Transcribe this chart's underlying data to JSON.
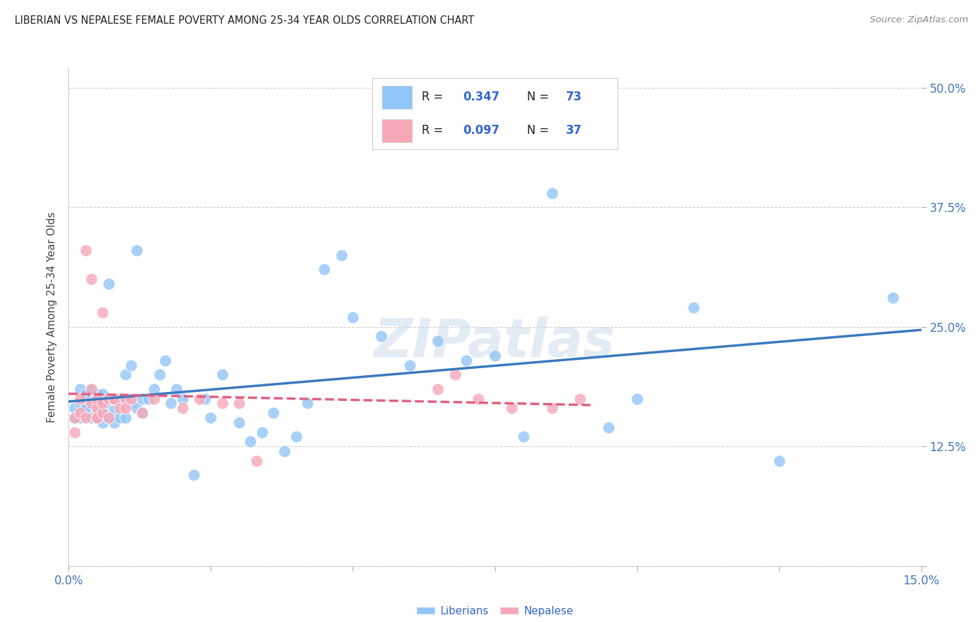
{
  "title": "LIBERIAN VS NEPALESE FEMALE POVERTY AMONG 25-34 YEAR OLDS CORRELATION CHART",
  "source": "Source: ZipAtlas.com",
  "ylabel": "Female Poverty Among 25-34 Year Olds",
  "xlim": [
    0.0,
    0.15
  ],
  "ylim": [
    0.0,
    0.52
  ],
  "xticks": [
    0.0,
    0.025,
    0.05,
    0.075,
    0.1,
    0.125,
    0.15
  ],
  "xtick_labels": [
    "0.0%",
    "",
    "",
    "",
    "",
    "",
    "15.0%"
  ],
  "yticks": [
    0.0,
    0.125,
    0.25,
    0.375,
    0.5
  ],
  "ytick_labels": [
    "",
    "12.5%",
    "25.0%",
    "37.5%",
    "50.0%"
  ],
  "liberian_color": "#92c5f7",
  "nepalese_color": "#f7a8b8",
  "liberian_line_color": "#3a7abf",
  "nepalese_line_color": "#e06080",
  "watermark": "ZIPatlas",
  "legend_R_liberian": "0.347",
  "legend_N_liberian": "73",
  "legend_R_nepalese": "0.097",
  "legend_N_nepalese": "37",
  "liberian_x": [
    0.001,
    0.001,
    0.002,
    0.002,
    0.002,
    0.003,
    0.003,
    0.003,
    0.003,
    0.004,
    0.004,
    0.004,
    0.004,
    0.005,
    0.005,
    0.005,
    0.005,
    0.005,
    0.006,
    0.006,
    0.006,
    0.006,
    0.006,
    0.007,
    0.007,
    0.007,
    0.008,
    0.008,
    0.008,
    0.009,
    0.009,
    0.01,
    0.01,
    0.01,
    0.011,
    0.011,
    0.012,
    0.012,
    0.013,
    0.013,
    0.014,
    0.015,
    0.016,
    0.017,
    0.018,
    0.019,
    0.02,
    0.022,
    0.024,
    0.025,
    0.027,
    0.03,
    0.032,
    0.034,
    0.036,
    0.038,
    0.04,
    0.042,
    0.045,
    0.048,
    0.05,
    0.055,
    0.06,
    0.065,
    0.07,
    0.075,
    0.08,
    0.085,
    0.095,
    0.1,
    0.11,
    0.125,
    0.145
  ],
  "liberian_y": [
    0.165,
    0.155,
    0.155,
    0.17,
    0.185,
    0.165,
    0.175,
    0.18,
    0.165,
    0.155,
    0.17,
    0.175,
    0.185,
    0.155,
    0.165,
    0.17,
    0.175,
    0.18,
    0.15,
    0.16,
    0.17,
    0.175,
    0.18,
    0.295,
    0.155,
    0.17,
    0.15,
    0.162,
    0.175,
    0.155,
    0.175,
    0.155,
    0.175,
    0.2,
    0.17,
    0.21,
    0.165,
    0.33,
    0.16,
    0.175,
    0.175,
    0.185,
    0.2,
    0.215,
    0.17,
    0.185,
    0.175,
    0.095,
    0.175,
    0.155,
    0.2,
    0.15,
    0.13,
    0.14,
    0.16,
    0.12,
    0.135,
    0.17,
    0.31,
    0.325,
    0.26,
    0.24,
    0.21,
    0.235,
    0.215,
    0.22,
    0.135,
    0.39,
    0.145,
    0.175,
    0.27,
    0.11,
    0.28
  ],
  "nepalese_x": [
    0.001,
    0.001,
    0.002,
    0.002,
    0.003,
    0.003,
    0.004,
    0.004,
    0.004,
    0.005,
    0.005,
    0.005,
    0.005,
    0.006,
    0.006,
    0.006,
    0.007,
    0.007,
    0.008,
    0.008,
    0.009,
    0.01,
    0.01,
    0.011,
    0.013,
    0.015,
    0.02,
    0.023,
    0.027,
    0.03,
    0.033,
    0.065,
    0.068,
    0.072,
    0.078,
    0.085,
    0.09
  ],
  "nepalese_y": [
    0.155,
    0.14,
    0.16,
    0.175,
    0.33,
    0.155,
    0.3,
    0.17,
    0.185,
    0.155,
    0.165,
    0.175,
    0.155,
    0.16,
    0.17,
    0.265,
    0.175,
    0.155,
    0.175,
    0.175,
    0.165,
    0.175,
    0.165,
    0.175,
    0.16,
    0.175,
    0.165,
    0.175,
    0.17,
    0.17,
    0.11,
    0.185,
    0.2,
    0.175,
    0.165,
    0.165,
    0.175
  ],
  "background_color": "#ffffff",
  "grid_color": "#d0d0d0"
}
